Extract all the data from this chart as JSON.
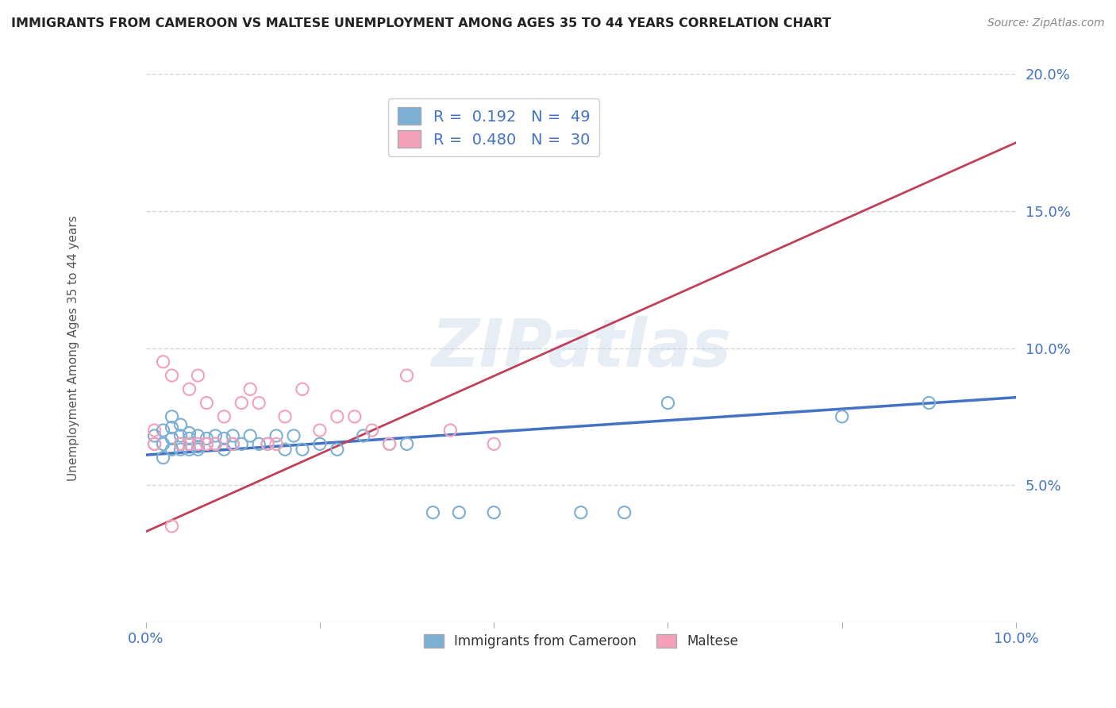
{
  "title": "IMMIGRANTS FROM CAMEROON VS MALTESE UNEMPLOYMENT AMONG AGES 35 TO 44 YEARS CORRELATION CHART",
  "source": "Source: ZipAtlas.com",
  "ylabel": "Unemployment Among Ages 35 to 44 years",
  "xlim": [
    0.0,
    0.1
  ],
  "ylim": [
    0.0,
    0.2
  ],
  "xticks": [
    0.0,
    0.02,
    0.04,
    0.06,
    0.08,
    0.1
  ],
  "yticks": [
    0.0,
    0.05,
    0.1,
    0.15,
    0.2
  ],
  "xtick_labels_show": [
    "0.0%",
    "",
    "",
    "",
    "",
    "10.0%"
  ],
  "ytick_labels_show": [
    "",
    "5.0%",
    "10.0%",
    "15.0%",
    "20.0%"
  ],
  "series1_label": "Immigrants from Cameroon",
  "series1_color": "#7bafd4",
  "series1_line_color": "#4472c4",
  "series1_R": "0.192",
  "series1_N": "49",
  "series2_label": "Maltese",
  "series2_color": "#f4a0b8",
  "series2_line_color": "#c0405a",
  "series2_R": "0.480",
  "series2_N": "30",
  "watermark": "ZIPatlas",
  "background_color": "#ffffff",
  "series1_x": [
    0.001,
    0.001,
    0.002,
    0.002,
    0.002,
    0.003,
    0.003,
    0.003,
    0.003,
    0.004,
    0.004,
    0.004,
    0.004,
    0.005,
    0.005,
    0.005,
    0.005,
    0.006,
    0.006,
    0.006,
    0.007,
    0.007,
    0.008,
    0.008,
    0.009,
    0.009,
    0.01,
    0.01,
    0.011,
    0.012,
    0.013,
    0.014,
    0.015,
    0.016,
    0.017,
    0.018,
    0.02,
    0.022,
    0.025,
    0.028,
    0.03,
    0.033,
    0.036,
    0.04,
    0.05,
    0.055,
    0.06,
    0.08,
    0.09
  ],
  "series1_y": [
    0.065,
    0.068,
    0.06,
    0.065,
    0.07,
    0.063,
    0.067,
    0.071,
    0.075,
    0.065,
    0.068,
    0.072,
    0.063,
    0.065,
    0.069,
    0.063,
    0.067,
    0.064,
    0.068,
    0.063,
    0.065,
    0.067,
    0.065,
    0.068,
    0.063,
    0.067,
    0.065,
    0.068,
    0.065,
    0.068,
    0.065,
    0.065,
    0.068,
    0.063,
    0.068,
    0.063,
    0.065,
    0.063,
    0.068,
    0.065,
    0.065,
    0.04,
    0.04,
    0.04,
    0.04,
    0.04,
    0.08,
    0.075,
    0.08
  ],
  "series2_x": [
    0.001,
    0.001,
    0.002,
    0.003,
    0.003,
    0.004,
    0.005,
    0.005,
    0.006,
    0.006,
    0.007,
    0.007,
    0.008,
    0.009,
    0.01,
    0.011,
    0.012,
    0.013,
    0.014,
    0.015,
    0.016,
    0.018,
    0.02,
    0.022,
    0.024,
    0.026,
    0.028,
    0.03,
    0.035,
    0.04
  ],
  "series2_y": [
    0.065,
    0.07,
    0.095,
    0.035,
    0.09,
    0.065,
    0.065,
    0.085,
    0.065,
    0.09,
    0.065,
    0.08,
    0.065,
    0.075,
    0.065,
    0.08,
    0.085,
    0.08,
    0.065,
    0.065,
    0.075,
    0.085,
    0.07,
    0.075,
    0.075,
    0.07,
    0.065,
    0.09,
    0.07,
    0.065
  ],
  "line1_x0": 0.0,
  "line1_y0": 0.061,
  "line1_x1": 0.1,
  "line1_y1": 0.082,
  "line2_x0": 0.0,
  "line2_y0": 0.033,
  "line2_x1": 0.1,
  "line2_y1": 0.175
}
